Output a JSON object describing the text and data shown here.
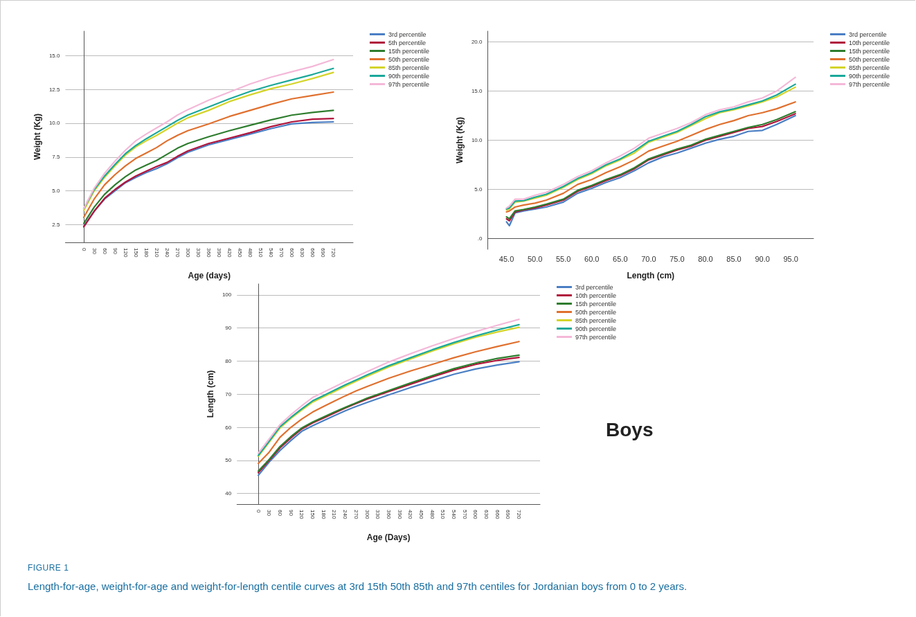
{
  "chart_data": [
    {
      "type": "line",
      "xlabel": "Age (days)",
      "ylabel": "Weight (Kg)",
      "x": [
        0,
        30,
        60,
        90,
        120,
        150,
        180,
        210,
        240,
        270,
        300,
        360,
        420,
        480,
        540,
        600,
        660,
        720
      ],
      "xlim": [
        -53,
        777
      ],
      "xticks": [
        0,
        30,
        60,
        90,
        120,
        150,
        180,
        210,
        240,
        270,
        300,
        330,
        360,
        390,
        420,
        450,
        480,
        510,
        540,
        570,
        600,
        630,
        660,
        690,
        720
      ],
      "ylim": [
        1.2,
        16.8
      ],
      "yticks": [
        {
          "value": 2.5,
          "label": "2.5"
        },
        {
          "value": 5,
          "label": "5.0"
        },
        {
          "value": 7.5,
          "label": "7.5"
        },
        {
          "value": 10,
          "label": "10.0"
        },
        {
          "value": 12.5,
          "label": "12.5"
        },
        {
          "value": 15,
          "label": "15.0"
        }
      ],
      "grid": "y",
      "legend": "top right",
      "marker": "none",
      "line_style": "solid",
      "series": [
        {
          "name": "3rd percentile",
          "color": "#4a7fc4",
          "values": [
            2.4,
            3.5,
            4.4,
            5.0,
            5.6,
            6.0,
            6.35,
            6.65,
            7.0,
            7.45,
            7.85,
            8.4,
            8.8,
            9.2,
            9.6,
            9.95,
            10.05,
            10.1
          ]
        },
        {
          "name": "5th percentile",
          "color": "#b0143c",
          "values": [
            2.35,
            3.5,
            4.45,
            5.1,
            5.65,
            6.1,
            6.45,
            6.8,
            7.1,
            7.55,
            7.95,
            8.5,
            8.9,
            9.3,
            9.75,
            10.1,
            10.3,
            10.35
          ]
        },
        {
          "name": "15th percentile",
          "color": "#2e7d2e",
          "values": [
            2.6,
            3.8,
            4.75,
            5.45,
            6.05,
            6.55,
            6.9,
            7.25,
            7.7,
            8.15,
            8.5,
            9.0,
            9.45,
            9.85,
            10.25,
            10.6,
            10.8,
            10.95
          ]
        },
        {
          "name": "50th percentile",
          "color": "#e0702e",
          "values": [
            3.05,
            4.4,
            5.45,
            6.2,
            6.85,
            7.4,
            7.8,
            8.2,
            8.7,
            9.1,
            9.45,
            9.95,
            10.5,
            10.95,
            11.4,
            11.8,
            12.05,
            12.3
          ]
        },
        {
          "name": "85th percentile",
          "color": "#d4d42a",
          "values": [
            3.55,
            5.0,
            6.0,
            6.85,
            7.65,
            8.25,
            8.7,
            9.1,
            9.55,
            10.0,
            10.4,
            10.95,
            11.6,
            12.1,
            12.55,
            12.9,
            13.3,
            13.75
          ]
        },
        {
          "name": "90th percentile",
          "color": "#1aa89a",
          "values": [
            3.7,
            5.1,
            6.1,
            6.95,
            7.75,
            8.35,
            8.85,
            9.3,
            9.75,
            10.2,
            10.6,
            11.2,
            11.8,
            12.35,
            12.8,
            13.2,
            13.6,
            14.05
          ]
        },
        {
          "name": "97th percentile",
          "color": "#f4b8d8",
          "values": [
            3.7,
            5.2,
            6.3,
            7.2,
            8.0,
            8.7,
            9.2,
            9.65,
            10.1,
            10.6,
            11.0,
            11.7,
            12.3,
            12.9,
            13.4,
            13.8,
            14.2,
            14.7
          ]
        }
      ]
    },
    {
      "type": "line",
      "xlabel": "Length (cm)",
      "ylabel": "Weight (Kg)",
      "x": [
        45,
        45.5,
        46.5,
        48,
        50,
        52,
        55,
        57.5,
        60,
        62.5,
        65,
        67.5,
        70,
        72.5,
        75,
        77.5,
        80,
        82.5,
        85,
        87.5,
        90,
        92.5,
        95.8
      ],
      "xlim": [
        41.7,
        99
      ],
      "xticks": [
        {
          "value": 45,
          "label": "45.0"
        },
        {
          "value": 50,
          "label": "50.0"
        },
        {
          "value": 55,
          "label": "55.0"
        },
        {
          "value": 60,
          "label": "60.0"
        },
        {
          "value": 65,
          "label": "65.0"
        },
        {
          "value": 70,
          "label": "70.0"
        },
        {
          "value": 75,
          "label": "75.0"
        },
        {
          "value": 80,
          "label": "80.0"
        },
        {
          "value": 85,
          "label": "85.0"
        },
        {
          "value": 90,
          "label": "90.0"
        },
        {
          "value": 95,
          "label": "95.0"
        }
      ],
      "ylim": [
        -1.1,
        21.1
      ],
      "yticks": [
        {
          "value": 0,
          "label": ".0"
        },
        {
          "value": 5,
          "label": "5.0"
        },
        {
          "value": 10,
          "label": "10.0"
        },
        {
          "value": 15,
          "label": "15.0"
        },
        {
          "value": 20,
          "label": "20.0"
        }
      ],
      "grid": "y",
      "legend": "top right",
      "marker": "none",
      "line_style": "solid",
      "series": [
        {
          "name": "3rd percentile",
          "color": "#4a7fc4",
          "values": [
            1.7,
            1.3,
            2.6,
            2.8,
            3.0,
            3.2,
            3.7,
            4.6,
            5.1,
            5.7,
            6.2,
            6.9,
            7.7,
            8.3,
            8.7,
            9.2,
            9.7,
            10.1,
            10.4,
            10.9,
            11.0,
            11.6,
            12.5
          ]
        },
        {
          "name": "10th percentile",
          "color": "#b0143c",
          "values": [
            2.0,
            1.8,
            2.7,
            2.9,
            3.1,
            3.4,
            3.9,
            4.8,
            5.3,
            5.9,
            6.4,
            7.1,
            8.0,
            8.5,
            9.0,
            9.4,
            10.0,
            10.4,
            10.8,
            11.2,
            11.4,
            11.9,
            12.7
          ]
        },
        {
          "name": "15th percentile",
          "color": "#2e7d2e",
          "values": [
            2.2,
            2.0,
            2.8,
            2.95,
            3.2,
            3.5,
            4.0,
            4.9,
            5.4,
            6.0,
            6.5,
            7.2,
            8.1,
            8.6,
            9.1,
            9.5,
            10.1,
            10.5,
            10.9,
            11.3,
            11.6,
            12.1,
            12.9
          ]
        },
        {
          "name": "50th percentile",
          "color": "#e0702e",
          "values": [
            2.7,
            2.8,
            3.2,
            3.4,
            3.6,
            3.9,
            4.6,
            5.5,
            6.0,
            6.7,
            7.3,
            8.0,
            8.9,
            9.4,
            9.9,
            10.5,
            11.1,
            11.6,
            12.0,
            12.5,
            12.8,
            13.2,
            13.9
          ]
        },
        {
          "name": "85th percentile",
          "color": "#d4d42a",
          "values": [
            2.9,
            3.0,
            3.7,
            3.8,
            4.1,
            4.4,
            5.2,
            6.0,
            6.6,
            7.4,
            8.0,
            8.7,
            9.8,
            10.3,
            10.8,
            11.5,
            12.2,
            12.8,
            13.1,
            13.5,
            13.9,
            14.4,
            15.4
          ]
        },
        {
          "name": "90th percentile",
          "color": "#1aa89a",
          "values": [
            3.0,
            3.1,
            3.8,
            3.85,
            4.2,
            4.5,
            5.3,
            6.1,
            6.7,
            7.5,
            8.1,
            8.9,
            9.9,
            10.4,
            10.9,
            11.6,
            12.4,
            12.9,
            13.2,
            13.6,
            14.0,
            14.6,
            15.7
          ]
        },
        {
          "name": "97th percentile",
          "color": "#f4b8d8",
          "values": [
            3.1,
            3.3,
            4.0,
            4.0,
            4.4,
            4.7,
            5.5,
            6.3,
            6.9,
            7.7,
            8.4,
            9.2,
            10.2,
            10.7,
            11.2,
            11.8,
            12.6,
            13.1,
            13.4,
            13.9,
            14.3,
            15.0,
            16.4
          ]
        }
      ]
    },
    {
      "type": "line",
      "xlabel": "Age (Days)",
      "ylabel": "Length (cm)",
      "x": [
        0,
        30,
        60,
        90,
        120,
        150,
        180,
        210,
        240,
        270,
        300,
        360,
        420,
        480,
        540,
        600,
        660,
        720
      ],
      "xlim": [
        -59,
        778
      ],
      "xticks": [
        0,
        30,
        60,
        90,
        120,
        150,
        180,
        210,
        240,
        270,
        300,
        330,
        360,
        390,
        420,
        450,
        480,
        510,
        540,
        570,
        600,
        630,
        660,
        690,
        720
      ],
      "ylim": [
        36.8,
        103.3
      ],
      "yticks": [
        40,
        50,
        60,
        70,
        80,
        90,
        100
      ],
      "grid": "y",
      "legend": "top right",
      "marker": "none",
      "line_style": "solid",
      "annotations": [
        "Boys",
        "FIGURE 1",
        "Length-for-age, weight-for-age and weight-for-length centile curves at 3rd 15th 50th 85th and 97th centiles for Jordanian boys from 0 to 2 years."
      ],
      "series": [
        {
          "name": "3rd percentile",
          "color": "#4a7fc4",
          "values": [
            45.5,
            49.5,
            53,
            56,
            58.8,
            60.5,
            62,
            63.5,
            65,
            66.3,
            67.5,
            69.8,
            72,
            74,
            76,
            77.6,
            78.8,
            79.8
          ]
        },
        {
          "name": "10th percentile",
          "color": "#b0143c",
          "values": [
            46.3,
            50,
            53.8,
            56.8,
            59.5,
            61.3,
            62.8,
            64.3,
            65.8,
            67.2,
            68.5,
            70.8,
            73,
            75.2,
            77.3,
            79,
            80.2,
            81.1
          ]
        },
        {
          "name": "15th percentile",
          "color": "#2e7d2e",
          "values": [
            46.8,
            50.3,
            54.2,
            57.2,
            59.8,
            61.6,
            63.1,
            64.6,
            66,
            67.4,
            68.8,
            71.1,
            73.4,
            75.6,
            77.7,
            79.4,
            80.8,
            81.8
          ]
        },
        {
          "name": "50th percentile",
          "color": "#e0702e",
          "values": [
            49.1,
            52.5,
            57,
            60,
            62.5,
            64.6,
            66.3,
            67.9,
            69.5,
            71,
            72.3,
            74.8,
            77,
            79,
            81,
            82.8,
            84.4,
            85.9
          ]
        },
        {
          "name": "85th percentile",
          "color": "#d4d42a",
          "values": [
            51.2,
            55.5,
            59.8,
            62.7,
            65.2,
            67.6,
            69.2,
            70.8,
            72.4,
            73.9,
            75.4,
            78.2,
            80.6,
            83,
            85.2,
            87.2,
            88.8,
            90.2
          ]
        },
        {
          "name": "90th percentile",
          "color": "#1aa89a",
          "values": [
            51.5,
            55.8,
            60.2,
            63,
            65.6,
            68,
            69.6,
            71.2,
            72.8,
            74.3,
            75.8,
            78.6,
            81,
            83.4,
            85.6,
            87.6,
            89.4,
            91.0
          ]
        },
        {
          "name": "97th percentile",
          "color": "#f4b8d8",
          "values": [
            52.2,
            56.5,
            60.8,
            63.8,
            66.5,
            69,
            70.6,
            72.2,
            73.8,
            75.3,
            76.8,
            79.7,
            82.2,
            84.6,
            86.8,
            88.9,
            90.8,
            92.6
          ]
        }
      ]
    }
  ]
}
